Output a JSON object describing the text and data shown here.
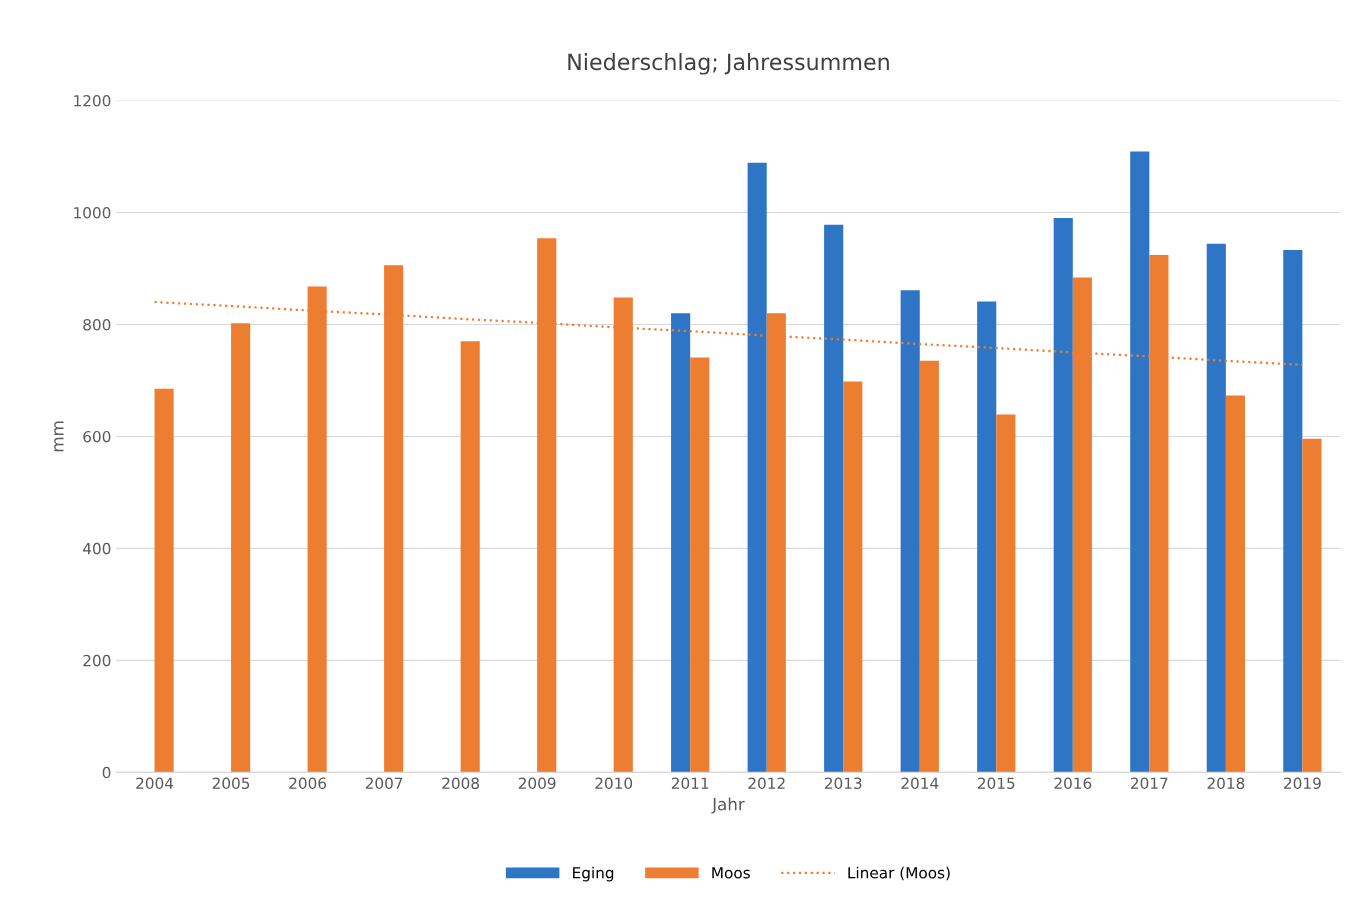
{
  "chart_data": {
    "type": "bar",
    "title": "Niederschlag; Jahressummen",
    "xlabel": "Jahr",
    "ylabel": "mm",
    "categories": [
      "2004",
      "2005",
      "2006",
      "2007",
      "2008",
      "2009",
      "2010",
      "2011",
      "2012",
      "2013",
      "2014",
      "2015",
      "2016",
      "2017",
      "2018",
      "2019"
    ],
    "series": [
      {
        "name": "Eging",
        "color": "#2e75c6",
        "values": [
          null,
          null,
          null,
          null,
          null,
          null,
          null,
          820,
          1089,
          978,
          861,
          841,
          990,
          1109,
          944,
          933
        ]
      },
      {
        "name": "Moos",
        "color": "#ed7d31",
        "values": [
          685,
          802,
          868,
          906,
          770,
          954,
          848,
          741,
          820,
          698,
          735,
          639,
          884,
          924,
          673,
          596
        ]
      },
      {
        "name": "Linear (Moos)",
        "type": "line",
        "line_style": "dotted",
        "color": "#ed7d31",
        "values": [
          840,
          833,
          825,
          818,
          810,
          803,
          795,
          788,
          780,
          773,
          765,
          758,
          750,
          743,
          735,
          728
        ]
      }
    ],
    "ylim": [
      0,
      1200
    ],
    "yticks": [
      0,
      200,
      400,
      600,
      800,
      1000,
      1200
    ],
    "grid": "y",
    "legend": "bottom"
  }
}
